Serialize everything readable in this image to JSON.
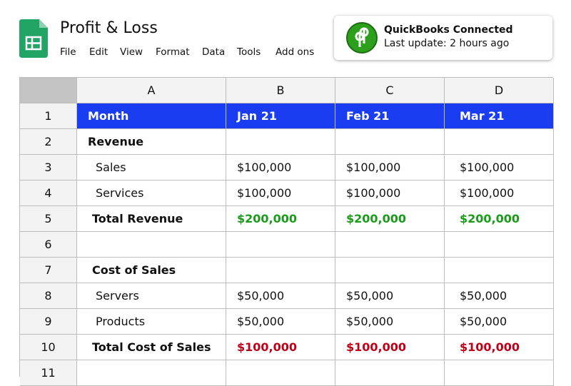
{
  "header": {
    "title": "Profit & Loss",
    "menu": [
      "File",
      "Edit",
      "View",
      "Format",
      "Data",
      "Tools",
      "Add ons"
    ]
  },
  "notification": {
    "title": "QuickBooks Connected",
    "subtitle": "Last update: 2 hours ago"
  },
  "table": {
    "columns": [
      "A",
      "B",
      "C",
      "D"
    ],
    "rows": [
      {
        "number": "1",
        "cells": [
          "Month",
          "Jan 21",
          "Feb 21",
          "Mar 21"
        ]
      },
      {
        "number": "2",
        "cells": [
          "Revenue"
        ]
      },
      {
        "number": "3",
        "cells": [
          "Sales",
          "$100,000",
          "$100,000",
          "$100,000"
        ]
      },
      {
        "number": "4",
        "cells": [
          "Services",
          "$100,000",
          "$100,000",
          "$100,000"
        ]
      },
      {
        "number": "5",
        "cells": [
          "Total Revenue",
          "$200,000",
          "$200,000",
          "$200,000"
        ]
      },
      {
        "number": "6"
      },
      {
        "number": "7",
        "cells": [
          "Cost of Sales"
        ]
      },
      {
        "number": "8",
        "cells": [
          "Servers",
          "$50,000",
          "$50,000",
          "$50,000"
        ]
      },
      {
        "number": "9",
        "cells": [
          "Products",
          "$50,000",
          "$50,000",
          "$50,000"
        ]
      },
      {
        "number": "10",
        "cells": [
          "Total Cost of Sales",
          "$100,000",
          "$100,000",
          "$100,000"
        ]
      },
      {
        "number": "11"
      }
    ]
  }
}
